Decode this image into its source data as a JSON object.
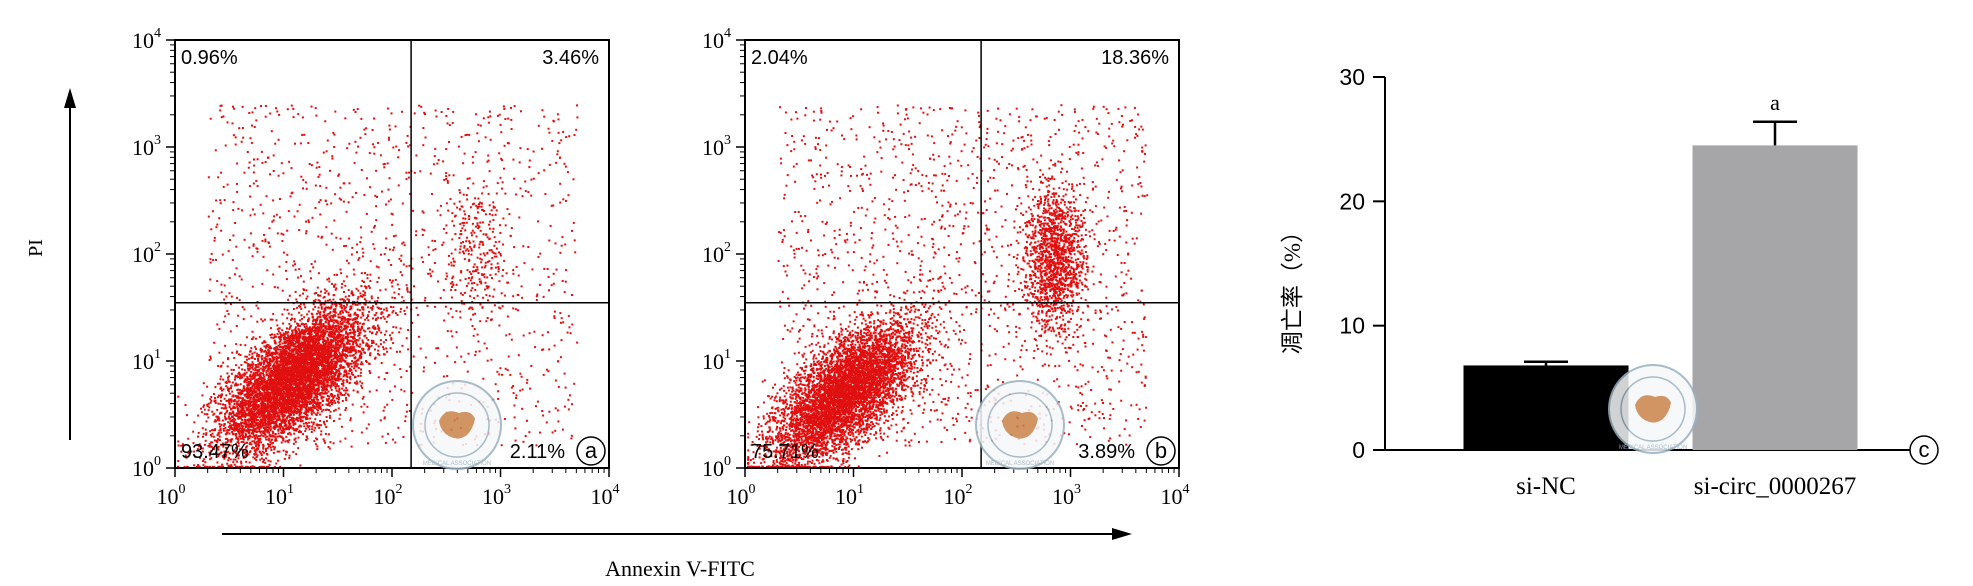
{
  "colors": {
    "dots": "#e01010",
    "axis": "#000000",
    "bar_si_nc": "#000000",
    "bar_si_circ": "#a6a6a8",
    "watermark": "#9ab0bf"
  },
  "shared": {
    "y_label": "PI",
    "x_label": "Annexin V-FITC",
    "log_ticks": [
      "10^0",
      "10^1",
      "10^2",
      "10^3",
      "10^4"
    ]
  },
  "watermark": {
    "name": "medical-association-seal",
    "text": "MEDICAL ASSOCIATION"
  },
  "chart_data": [
    {
      "type": "scatter",
      "panel_label": "a",
      "x_scale": "log",
      "y_scale": "log",
      "xlim": [
        1,
        10000
      ],
      "ylim": [
        1,
        10000
      ],
      "gate": {
        "x": 150,
        "y": 35
      },
      "quadrants": {
        "upper_left": "0.96%",
        "upper_right": "3.46%",
        "lower_left": "93.47%",
        "lower_right": "2.11%"
      },
      "populations": [
        {
          "region": "lower-left",
          "x_center": 12,
          "y_center": 7,
          "count": 6500
        },
        {
          "region": "upper-right",
          "x_center": 600,
          "y_center": 100,
          "count": 240
        },
        {
          "region": "scattered",
          "count": 1200
        }
      ]
    },
    {
      "type": "scatter",
      "panel_label": "b",
      "x_scale": "log",
      "y_scale": "log",
      "xlim": [
        1,
        10000
      ],
      "ylim": [
        1,
        10000
      ],
      "gate": {
        "x": 150,
        "y": 35
      },
      "quadrants": {
        "upper_left": "2.04%",
        "upper_right": "18.36%",
        "lower_left": "75.71%",
        "lower_right": "3.89%"
      },
      "populations": [
        {
          "region": "lower-left",
          "x_center": 8,
          "y_center": 5,
          "count": 5500
        },
        {
          "region": "upper-right",
          "x_center": 700,
          "y_center": 90,
          "count": 1300
        },
        {
          "region": "scattered",
          "count": 1500
        }
      ]
    },
    {
      "type": "bar",
      "panel_label": "c",
      "categories": [
        "si-NC",
        "si-circ_0000267"
      ],
      "values": [
        6.8,
        24.5
      ],
      "errors": [
        0.3,
        1.9
      ],
      "annotations": [
        "",
        "a"
      ],
      "ylabel": "凋亡率（%）",
      "ylim": [
        0,
        30
      ],
      "yticks": [
        0,
        10,
        20,
        30
      ]
    }
  ]
}
